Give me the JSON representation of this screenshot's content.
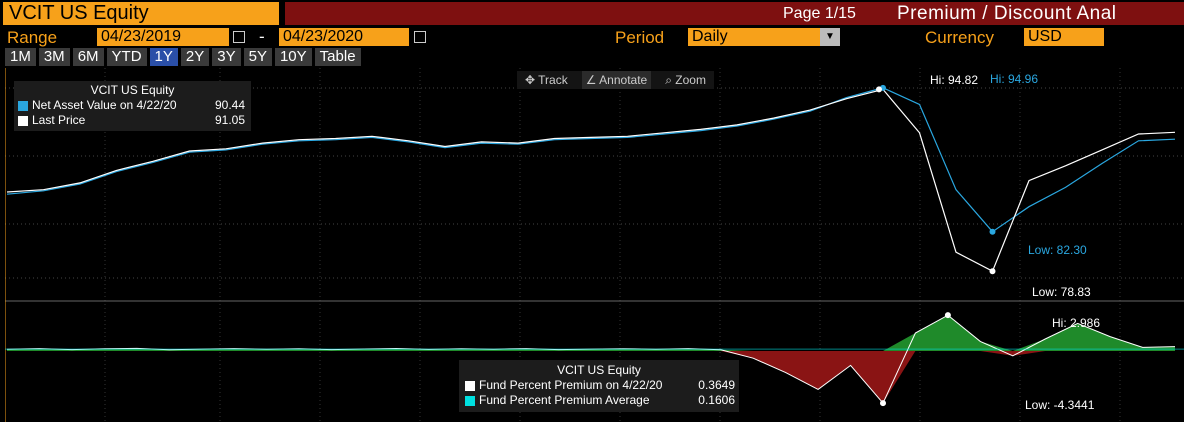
{
  "header": {
    "ticker": "VCIT US Equity",
    "page": "Page 1/15",
    "title": "Premium / Discount Anal"
  },
  "controls": {
    "range_label": "Range",
    "range_start": "04/23/2019",
    "range_dash": "-",
    "range_end": "04/23/2020",
    "period_label": "Period",
    "period_value": "Daily",
    "currency_label": "Currency",
    "currency_value": "USD"
  },
  "tabs": [
    {
      "label": "1M"
    },
    {
      "label": "3M"
    },
    {
      "label": "6M"
    },
    {
      "label": "YTD"
    },
    {
      "label": "1Y",
      "active": true
    },
    {
      "label": "2Y"
    },
    {
      "label": "3Y"
    },
    {
      "label": "5Y"
    },
    {
      "label": "10Y"
    },
    {
      "label": "Table"
    }
  ],
  "chart_toolbar": {
    "track": "Track",
    "annotate": "Annotate",
    "zoom": "Zoom"
  },
  "colors": {
    "orange": "#f7a11a",
    "nav_line": "#2aa7e0",
    "price_line": "#ffffff",
    "premium_fill": "#1f8a2a",
    "discount_fill": "#8a1414",
    "avg_line": "#00e0e0"
  },
  "top_legend": {
    "title": "VCIT US Equity",
    "items": [
      {
        "label": "Net Asset Value on 4/22/20",
        "value": "90.44",
        "color": "#2aa7e0"
      },
      {
        "label": "Last Price",
        "value": "91.05",
        "color": "#ffffff"
      }
    ]
  },
  "bottom_legend": {
    "title": "VCIT US Equity",
    "items": [
      {
        "label": "Fund Percent Premium on 4/22/20",
        "value": "0.3649",
        "color": "#ffffff"
      },
      {
        "label": "Fund Percent Premium Average",
        "value": "0.1606",
        "color": "#00e0e0"
      }
    ]
  },
  "annotations": {
    "price_hi": "Hi: 94.82",
    "nav_hi": "Hi: 94.96",
    "nav_low": "Low: 82.30",
    "price_low": "Low: 78.83",
    "prem_hi": "Hi: 2.986",
    "prem_low": "Low: -4.3441"
  },
  "chart_data": [
    {
      "type": "line",
      "x_range": [
        "04/23/2019",
        "04/23/2020"
      ],
      "series": [
        {
          "name": "Net Asset Value",
          "values": [
            85.6,
            85.9,
            86.5,
            87.6,
            88.4,
            89.3,
            89.5,
            90.0,
            90.3,
            90.4,
            90.6,
            90.2,
            89.7,
            90.1,
            90.0,
            90.4,
            90.5,
            90.6,
            90.9,
            91.2,
            91.6,
            92.2,
            92.9,
            94.1,
            94.96,
            93.5,
            86.0,
            82.3,
            84.5,
            86.2,
            88.3,
            90.3,
            90.44
          ]
        },
        {
          "name": "Last Price",
          "values": [
            85.8,
            86.0,
            86.6,
            87.7,
            88.5,
            89.4,
            89.6,
            90.1,
            90.4,
            90.5,
            90.7,
            90.3,
            89.8,
            90.2,
            90.1,
            90.5,
            90.6,
            90.7,
            91.0,
            91.3,
            91.7,
            92.3,
            93.0,
            94.0,
            94.82,
            91.0,
            80.5,
            78.83,
            86.8,
            88.1,
            89.5,
            90.9,
            91.05
          ]
        }
      ],
      "hi": {
        "nav": 94.96,
        "price": 94.82
      },
      "low": {
        "nav": 82.3,
        "price": 78.83
      }
    },
    {
      "type": "area",
      "series": [
        {
          "name": "Fund Percent Premium",
          "values": [
            0.15,
            0.2,
            0.12,
            0.18,
            0.22,
            0.1,
            0.16,
            0.2,
            0.14,
            0.19,
            0.12,
            0.17,
            0.21,
            0.13,
            0.18,
            0.15,
            0.2,
            0.12,
            0.16,
            0.19,
            0.14,
            0.2,
            0.1,
            -0.6,
            -1.8,
            -3.2,
            -1.2,
            -4.3441,
            1.5,
            2.986,
            0.8,
            -0.4,
            1.0,
            2.3,
            1.2,
            0.3,
            0.3649
          ]
        }
      ],
      "average": 0.1606,
      "hi": 2.986,
      "low": -4.3441
    }
  ]
}
